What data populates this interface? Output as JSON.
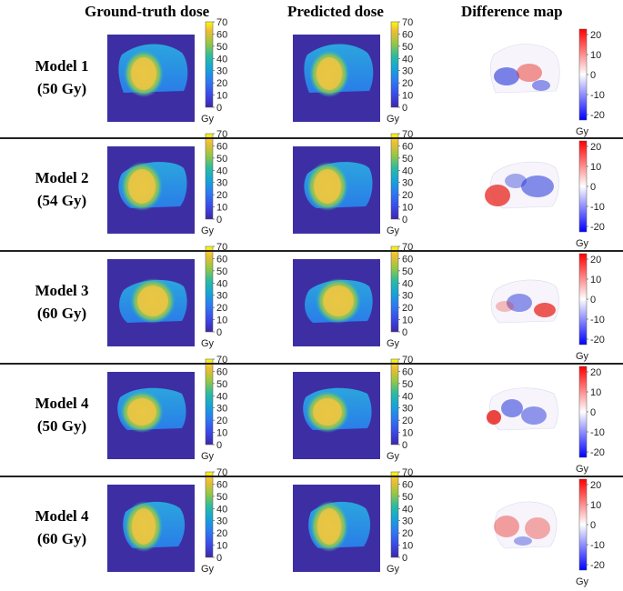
{
  "headers": {
    "ground_truth": "Ground-truth dose",
    "predicted": "Predicted dose",
    "difference": "Difference map"
  },
  "dose_colorbar": {
    "ticks": [
      "70",
      "60",
      "50",
      "40",
      "30",
      "20",
      "10",
      "0"
    ],
    "unit": "Gy"
  },
  "diff_colorbar": {
    "ticks": [
      "20",
      "10",
      "0",
      "-10",
      "-20"
    ],
    "unit": "Gy"
  },
  "rows": [
    {
      "line1": "Model 1",
      "line2": "(50 Gy)"
    },
    {
      "line1": "Model 2",
      "line2": "(54 Gy)"
    },
    {
      "line1": "Model 3",
      "line2": "(60 Gy)"
    },
    {
      "line1": "Model 4",
      "line2": "(50 Gy)"
    },
    {
      "line1": "Model 4",
      "line2": "(60 Gy)"
    }
  ],
  "colors": {
    "background_dose": "#3d2fa3",
    "body_dose": "#2a8fe8",
    "target_dose": "#e8c545",
    "diff_red": "#e8322c",
    "diff_blue": "#2433d8"
  }
}
